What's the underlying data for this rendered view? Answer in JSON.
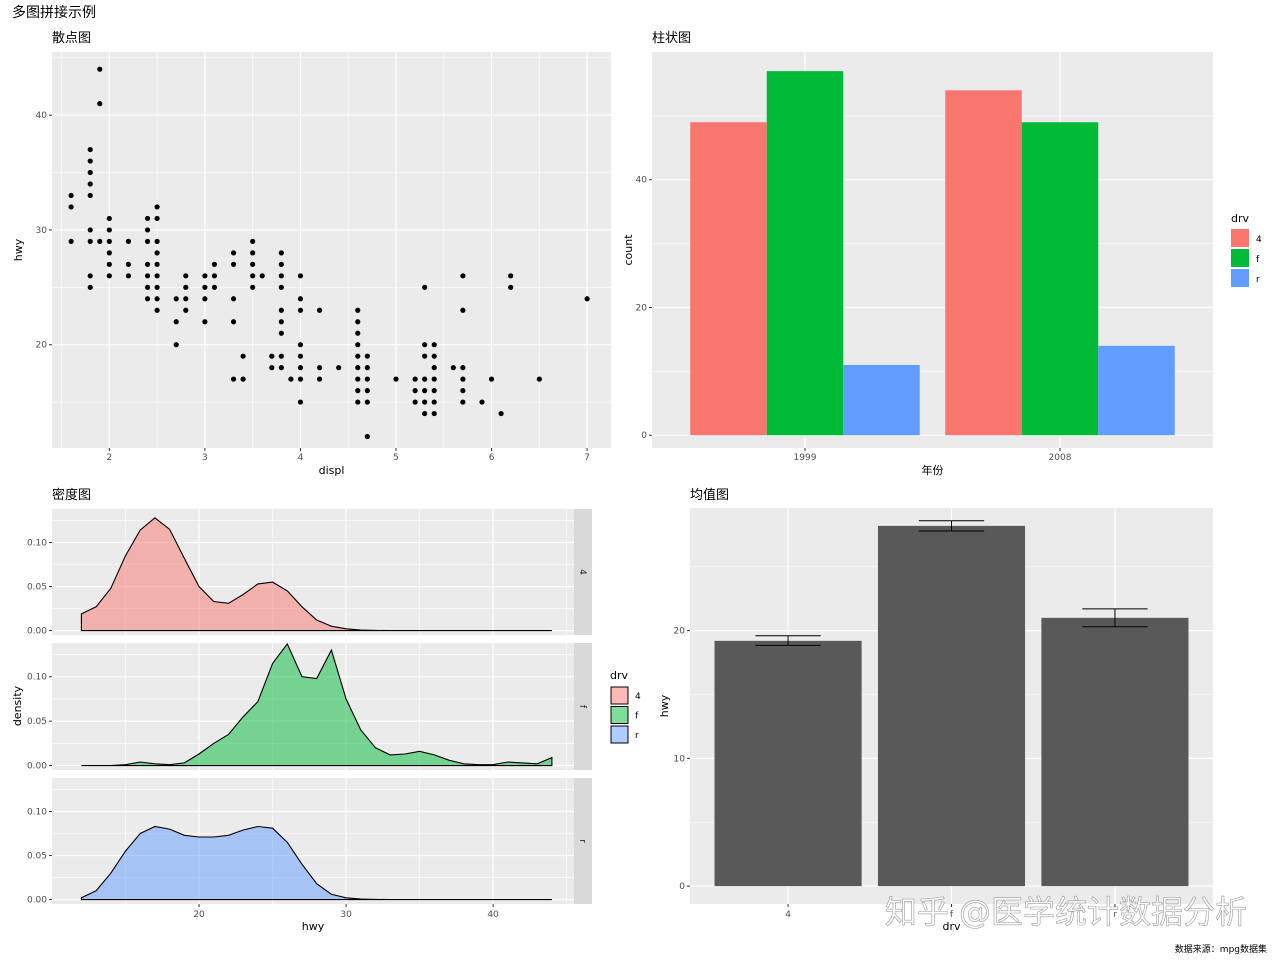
{
  "main_title": "多图拼接示例",
  "caption": "数据来源：mpg数据集",
  "watermark": "知乎 @医学统计数据分析",
  "colors": {
    "panel_bg": "#EBEBEB",
    "grid": "#FFFFFF",
    "drv_4": "#F8766D",
    "drv_f": "#00BA38",
    "drv_r": "#619CFF",
    "mean_bar": "#595959",
    "strip_bg": "#D9D9D9",
    "axis_text": "#4D4D4D"
  },
  "chart_data": [
    {
      "id": "scatter",
      "type": "scatter",
      "title": "散点图",
      "xlabel": "displ",
      "ylabel": "hwy",
      "xlim": [
        1.4,
        7.25
      ],
      "ylim": [
        11,
        45.5
      ],
      "xticks": [
        2,
        3,
        4,
        5,
        6,
        7
      ],
      "yticks": [
        20,
        30,
        40
      ],
      "points": [
        [
          1.6,
          33
        ],
        [
          1.6,
          32
        ],
        [
          1.6,
          29
        ],
        [
          1.8,
          37
        ],
        [
          1.8,
          36
        ],
        [
          1.8,
          35
        ],
        [
          1.8,
          34
        ],
        [
          1.8,
          33
        ],
        [
          1.8,
          30
        ],
        [
          1.8,
          29
        ],
        [
          1.8,
          26
        ],
        [
          1.8,
          25
        ],
        [
          1.9,
          44
        ],
        [
          1.9,
          41
        ],
        [
          1.9,
          29
        ],
        [
          2.0,
          31
        ],
        [
          2.0,
          30
        ],
        [
          2.0,
          29
        ],
        [
          2.0,
          28
        ],
        [
          2.0,
          27
        ],
        [
          2.0,
          26
        ],
        [
          2.2,
          29
        ],
        [
          2.2,
          27
        ],
        [
          2.2,
          26
        ],
        [
          2.4,
          31
        ],
        [
          2.4,
          30
        ],
        [
          2.4,
          29
        ],
        [
          2.4,
          27
        ],
        [
          2.4,
          26
        ],
        [
          2.4,
          25
        ],
        [
          2.4,
          24
        ],
        [
          2.5,
          32
        ],
        [
          2.5,
          31
        ],
        [
          2.5,
          29
        ],
        [
          2.5,
          28
        ],
        [
          2.5,
          27
        ],
        [
          2.5,
          26
        ],
        [
          2.5,
          25
        ],
        [
          2.5,
          24
        ],
        [
          2.5,
          23
        ],
        [
          2.7,
          24
        ],
        [
          2.7,
          22
        ],
        [
          2.7,
          20
        ],
        [
          2.8,
          26
        ],
        [
          2.8,
          25
        ],
        [
          2.8,
          24
        ],
        [
          2.8,
          23
        ],
        [
          3.0,
          26
        ],
        [
          3.0,
          25
        ],
        [
          3.0,
          24
        ],
        [
          3.0,
          22
        ],
        [
          3.1,
          27
        ],
        [
          3.1,
          26
        ],
        [
          3.1,
          25
        ],
        [
          3.3,
          28
        ],
        [
          3.3,
          27
        ],
        [
          3.3,
          24
        ],
        [
          3.3,
          22
        ],
        [
          3.3,
          17
        ],
        [
          3.4,
          19
        ],
        [
          3.4,
          17
        ],
        [
          3.5,
          29
        ],
        [
          3.5,
          28
        ],
        [
          3.5,
          27
        ],
        [
          3.5,
          26
        ],
        [
          3.5,
          25
        ],
        [
          3.6,
          26
        ],
        [
          3.7,
          19
        ],
        [
          3.7,
          18
        ],
        [
          3.8,
          28
        ],
        [
          3.8,
          27
        ],
        [
          3.8,
          26
        ],
        [
          3.8,
          25
        ],
        [
          3.8,
          23
        ],
        [
          3.8,
          22
        ],
        [
          3.8,
          21
        ],
        [
          3.8,
          19
        ],
        [
          3.8,
          18
        ],
        [
          3.9,
          17
        ],
        [
          4.0,
          26
        ],
        [
          4.0,
          24
        ],
        [
          4.0,
          23
        ],
        [
          4.0,
          20
        ],
        [
          4.0,
          19
        ],
        [
          4.0,
          18
        ],
        [
          4.0,
          17
        ],
        [
          4.0,
          15
        ],
        [
          4.2,
          23
        ],
        [
          4.2,
          18
        ],
        [
          4.2,
          17
        ],
        [
          4.4,
          18
        ],
        [
          4.6,
          23
        ],
        [
          4.6,
          22
        ],
        [
          4.6,
          21
        ],
        [
          4.6,
          20
        ],
        [
          4.6,
          19
        ],
        [
          4.6,
          18
        ],
        [
          4.6,
          17
        ],
        [
          4.6,
          16
        ],
        [
          4.6,
          15
        ],
        [
          4.7,
          19
        ],
        [
          4.7,
          18
        ],
        [
          4.7,
          17
        ],
        [
          4.7,
          16
        ],
        [
          4.7,
          15
        ],
        [
          4.7,
          12
        ],
        [
          5.0,
          17
        ],
        [
          5.2,
          17
        ],
        [
          5.2,
          16
        ],
        [
          5.2,
          15
        ],
        [
          5.3,
          25
        ],
        [
          5.3,
          20
        ],
        [
          5.3,
          19
        ],
        [
          5.3,
          17
        ],
        [
          5.3,
          16
        ],
        [
          5.3,
          15
        ],
        [
          5.3,
          14
        ],
        [
          5.4,
          20
        ],
        [
          5.4,
          19
        ],
        [
          5.4,
          18
        ],
        [
          5.4,
          17
        ],
        [
          5.4,
          16
        ],
        [
          5.4,
          15
        ],
        [
          5.4,
          14
        ],
        [
          5.6,
          18
        ],
        [
          5.7,
          26
        ],
        [
          5.7,
          23
        ],
        [
          5.7,
          18
        ],
        [
          5.7,
          17
        ],
        [
          5.7,
          16
        ],
        [
          5.7,
          15
        ],
        [
          5.9,
          15
        ],
        [
          6.0,
          17
        ],
        [
          6.1,
          14
        ],
        [
          6.2,
          26
        ],
        [
          6.2,
          25
        ],
        [
          6.5,
          17
        ],
        [
          7.0,
          24
        ]
      ]
    },
    {
      "id": "bar",
      "type": "bar",
      "title": "柱状图",
      "xlabel": "年份",
      "ylabel": "count",
      "ylim": [
        -2,
        60
      ],
      "yticks": [
        0,
        20,
        40
      ],
      "categories": [
        "1999",
        "2008"
      ],
      "legend_title": "drv",
      "series": [
        {
          "name": "4",
          "values": [
            49,
            54
          ]
        },
        {
          "name": "f",
          "values": [
            57,
            49
          ]
        },
        {
          "name": "r",
          "values": [
            11,
            14
          ]
        }
      ]
    },
    {
      "id": "density",
      "type": "area",
      "title": "密度图",
      "xlabel": "hwy",
      "ylabel": "density",
      "xlim": [
        10,
        45.5
      ],
      "ylim": [
        -0.005,
        0.138
      ],
      "xticks": [
        20,
        30,
        40
      ],
      "yticks": [
        0.0,
        0.05,
        0.1
      ],
      "ytick_labels": [
        "0.00",
        "0.05",
        "0.10"
      ],
      "legend_title": "drv",
      "series": [
        {
          "name": "4",
          "x": [
            12,
            13,
            14,
            15,
            16,
            17,
            18,
            19,
            20,
            21,
            22,
            23,
            24,
            25,
            26,
            27,
            28,
            29,
            30,
            31,
            32,
            33,
            34,
            35,
            36,
            37,
            38,
            39,
            40,
            41,
            42,
            43,
            44
          ],
          "values": [
            0.019,
            0.027,
            0.048,
            0.085,
            0.114,
            0.128,
            0.115,
            0.082,
            0.05,
            0.033,
            0.031,
            0.041,
            0.053,
            0.055,
            0.045,
            0.027,
            0.012,
            0.005,
            0.002,
            0.0006,
            0.0002,
            0,
            0,
            0,
            0,
            0,
            0,
            0,
            0,
            0,
            0,
            0,
            0
          ]
        },
        {
          "name": "f",
          "x": [
            12,
            13,
            14,
            15,
            16,
            17,
            18,
            19,
            20,
            21,
            22,
            23,
            24,
            25,
            26,
            27,
            28,
            29,
            30,
            31,
            32,
            33,
            34,
            35,
            36,
            37,
            38,
            39,
            40,
            41,
            42,
            43,
            44
          ],
          "values": [
            0,
            0,
            0,
            0.001,
            0.004,
            0.002,
            0.001,
            0.003,
            0.013,
            0.025,
            0.035,
            0.055,
            0.072,
            0.115,
            0.137,
            0.1,
            0.098,
            0.13,
            0.075,
            0.04,
            0.02,
            0.012,
            0.013,
            0.016,
            0.012,
            0.006,
            0.002,
            0.001,
            0.001,
            0.004,
            0.003,
            0.002,
            0.009
          ]
        },
        {
          "name": "r",
          "x": [
            12,
            13,
            14,
            15,
            16,
            17,
            18,
            19,
            20,
            21,
            22,
            23,
            24,
            25,
            26,
            27,
            28,
            29,
            30,
            31,
            32,
            33,
            34,
            35,
            36,
            37,
            38,
            39,
            40,
            41,
            42,
            43,
            44
          ],
          "values": [
            0.002,
            0.01,
            0.03,
            0.055,
            0.075,
            0.083,
            0.08,
            0.073,
            0.071,
            0.071,
            0.073,
            0.079,
            0.083,
            0.081,
            0.065,
            0.04,
            0.018,
            0.006,
            0.002,
            0.0006,
            0.0002,
            0,
            0,
            0,
            0,
            0,
            0,
            0,
            0,
            0,
            0,
            0,
            0
          ]
        }
      ]
    },
    {
      "id": "mean",
      "type": "bar",
      "title": "均值图",
      "xlabel": "drv",
      "ylabel": "hwy",
      "ylim": [
        -1.4,
        29.6
      ],
      "yticks": [
        0,
        10,
        20
      ],
      "categories": [
        "4",
        "f",
        "r"
      ],
      "values": [
        19.2,
        28.2,
        21.0
      ],
      "error_low": [
        18.85,
        27.8,
        20.3
      ],
      "error_high": [
        19.6,
        28.6,
        21.7
      ]
    }
  ]
}
